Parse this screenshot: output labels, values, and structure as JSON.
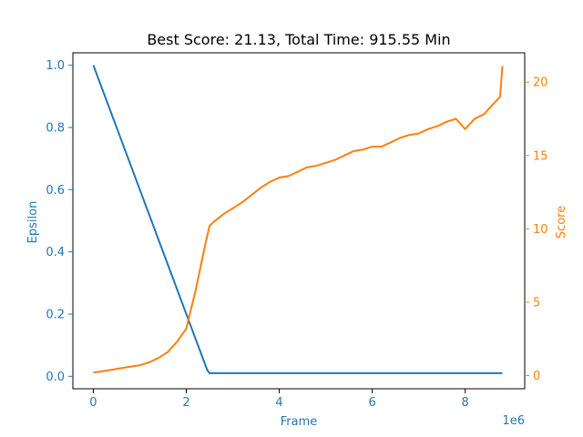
{
  "chart_data": {
    "type": "line",
    "title": "Best Score: 21.13, Total Time: 915.55 Min",
    "xlabel": "Frame",
    "x_offset_label": "1e6",
    "xlim": [
      -0.44,
      9.28
    ],
    "x_ticks": [
      0,
      2,
      4,
      6,
      8
    ],
    "left_axis": {
      "label": "Epsilon",
      "color": "#1f77b4",
      "ylim": [
        -0.04,
        1.04
      ],
      "ticks": [
        "0.0",
        "0.2",
        "0.4",
        "0.6",
        "0.8",
        "1.0"
      ]
    },
    "right_axis": {
      "label": "Score",
      "color": "#ff7f0e",
      "ylim": [
        -0.9,
        22.0
      ],
      "ticks": [
        "0",
        "5",
        "10",
        "15",
        "20"
      ]
    },
    "series": [
      {
        "axis": "left",
        "color": "#1f77b4",
        "x": [
          0,
          2.45,
          2.5,
          8.8
        ],
        "y": [
          1.0,
          0.02,
          0.01,
          0.01
        ]
      },
      {
        "axis": "right",
        "color": "#ff7f0e",
        "x": [
          0,
          0.2,
          0.4,
          0.6,
          0.8,
          1.0,
          1.2,
          1.4,
          1.6,
          1.8,
          2.0,
          2.1,
          2.2,
          2.3,
          2.4,
          2.5,
          2.6,
          2.8,
          3.0,
          3.2,
          3.4,
          3.6,
          3.8,
          4.0,
          4.2,
          4.4,
          4.6,
          4.8,
          5.0,
          5.2,
          5.4,
          5.6,
          5.8,
          6.0,
          6.2,
          6.4,
          6.6,
          6.8,
          7.0,
          7.2,
          7.4,
          7.6,
          7.8,
          8.0,
          8.2,
          8.4,
          8.6,
          8.75,
          8.8
        ],
        "y": [
          0.2,
          0.3,
          0.4,
          0.5,
          0.6,
          0.7,
          0.9,
          1.2,
          1.6,
          2.3,
          3.2,
          4.5,
          5.8,
          7.3,
          8.8,
          10.2,
          10.5,
          11.0,
          11.4,
          11.8,
          12.3,
          12.8,
          13.2,
          13.5,
          13.6,
          13.9,
          14.2,
          14.3,
          14.5,
          14.7,
          15.0,
          15.3,
          15.4,
          15.6,
          15.6,
          15.9,
          16.2,
          16.4,
          16.5,
          16.8,
          17.0,
          17.3,
          17.5,
          16.8,
          17.5,
          17.8,
          18.5,
          19.0,
          21.1
        ]
      }
    ]
  }
}
